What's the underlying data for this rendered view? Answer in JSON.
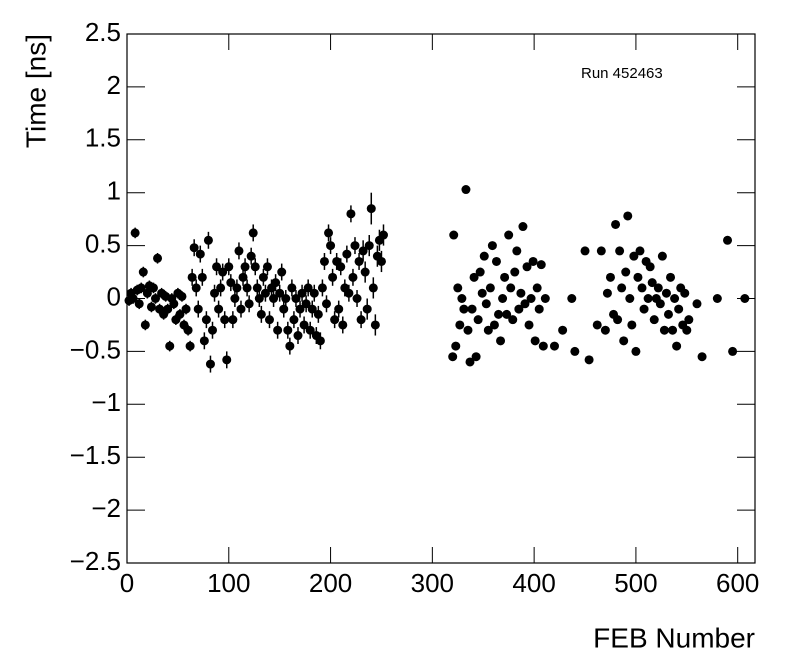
{
  "chart_data": {
    "type": "scatter",
    "x_label": "FEB Number",
    "y_label": "Time [ns]",
    "annotation": "Run 452463",
    "color": "#000000",
    "xlim": [
      0,
      617
    ],
    "xticks": [
      0,
      100,
      200,
      300,
      400,
      500,
      600
    ],
    "ylim": [
      -2.5,
      2.5
    ],
    "yticks": [
      {
        "value": -2.5,
        "label": "−2.5"
      },
      {
        "value": -2,
        "label": "−2"
      },
      {
        "value": -1.5,
        "label": "−1.5"
      },
      {
        "value": -1,
        "label": "−1"
      },
      {
        "value": -0.5,
        "label": "−0.5"
      },
      0,
      0.5,
      1,
      1.5,
      2,
      2.5
    ],
    "x": [
      2,
      4,
      6,
      8,
      10,
      12,
      14,
      16,
      18,
      20,
      22,
      24,
      26,
      28,
      30,
      32,
      34,
      36,
      38,
      40,
      42,
      44,
      46,
      48,
      50,
      52,
      54,
      56,
      58,
      60,
      62,
      64,
      66,
      68,
      70,
      72,
      74,
      76,
      78,
      80,
      82,
      84,
      86,
      88,
      90,
      92,
      94,
      96,
      98,
      100,
      102,
      104,
      106,
      108,
      110,
      112,
      114,
      116,
      118,
      120,
      122,
      124,
      126,
      128,
      130,
      132,
      134,
      136,
      138,
      140,
      142,
      144,
      146,
      148,
      150,
      152,
      154,
      156,
      158,
      160,
      162,
      164,
      166,
      168,
      170,
      172,
      174,
      176,
      178,
      180,
      182,
      184,
      186,
      188,
      190,
      192,
      194,
      196,
      198,
      200,
      202,
      204,
      206,
      208,
      210,
      212,
      214,
      216,
      218,
      220,
      222,
      224,
      226,
      228,
      230,
      232,
      234,
      236,
      238,
      240,
      242,
      244,
      246,
      248,
      250,
      252,
      320,
      321,
      323,
      325,
      327,
      329,
      331,
      333,
      335,
      337,
      339,
      341,
      343,
      345,
      347,
      349,
      351,
      353,
      355,
      357,
      359,
      361,
      363,
      365,
      367,
      369,
      371,
      373,
      375,
      377,
      379,
      381,
      383,
      385,
      387,
      389,
      391,
      393,
      395,
      397,
      399,
      401,
      403,
      405,
      407,
      409,
      411,
      420,
      428,
      437,
      440,
      450,
      454,
      462,
      466,
      470,
      472,
      475,
      478,
      480,
      482,
      484,
      486,
      488,
      490,
      492,
      494,
      496,
      498,
      500,
      502,
      504,
      506,
      508,
      510,
      512,
      514,
      516,
      518,
      520,
      522,
      524,
      526,
      528,
      530,
      532,
      534,
      536,
      538,
      540,
      542,
      544,
      546,
      548,
      550,
      552,
      560,
      565,
      580,
      590,
      595,
      607
    ],
    "values": [
      -0.02,
      0.05,
      0,
      0.62,
      0.08,
      -0.05,
      0.1,
      0.25,
      -0.25,
      0.05,
      0.12,
      -0.08,
      0.1,
      0,
      0.38,
      -0.1,
      0.05,
      -0.15,
      0.02,
      -0.1,
      -0.45,
      0,
      -0.05,
      -0.2,
      0.05,
      -0.15,
      0.02,
      -0.25,
      -0.1,
      -0.3,
      -0.45,
      0.2,
      0.48,
      0.1,
      -0.1,
      0.42,
      0.2,
      -0.4,
      -0.2,
      0.55,
      -0.62,
      -0.3,
      0.05,
      0.3,
      -0.1,
      0.1,
      0.25,
      -0.2,
      -0.58,
      0.3,
      0.15,
      -0.2,
      0,
      0.1,
      0.45,
      -0.1,
      0.2,
      0.3,
      0.1,
      -0.05,
      0.4,
      0.62,
      0.3,
      0.1,
      0,
      -0.15,
      0.2,
      0.05,
      0.3,
      -0.2,
      0.1,
      0,
      0.15,
      -0.3,
      0.05,
      0.25,
      -0.1,
      0,
      -0.3,
      -0.45,
      0.1,
      -0.2,
      0,
      -0.35,
      -0.1,
      0.05,
      -0.25,
      -0.05,
      0.1,
      -0.3,
      -0.1,
      0.05,
      -0.35,
      -0.15,
      -0.4,
      0.1,
      0.35,
      -0.05,
      0.62,
      0.5,
      0.2,
      -0.2,
      0.35,
      -0.1,
      0.3,
      -0.25,
      0.1,
      0.42,
      0.05,
      0.8,
      0.2,
      0.5,
      0,
      0.35,
      -0.2,
      0.45,
      0.25,
      -0.1,
      0.5,
      0.85,
      0.1,
      -0.25,
      0.4,
      0.55,
      0.35,
      0.6,
      -0.55,
      0.6,
      -0.45,
      0.1,
      -0.25,
      0,
      -0.1,
      1.03,
      -0.3,
      -0.6,
      -0.1,
      0.2,
      -0.55,
      -0.2,
      0.25,
      0.05,
      0.4,
      -0.05,
      -0.3,
      0.1,
      0.5,
      -0.25,
      0.35,
      -0.15,
      -0.4,
      0,
      0.2,
      -0.15,
      0.6,
      0.1,
      -0.2,
      0.25,
      0.45,
      -0.1,
      0.05,
      0.68,
      -0.05,
      0.3,
      -0.25,
      0,
      0.35,
      -0.4,
      0.1,
      -0.1,
      0.32,
      -0.45,
      0,
      -0.45,
      -0.3,
      0,
      -0.5,
      0.45,
      -0.58,
      -0.25,
      0.45,
      -0.3,
      0.05,
      0.2,
      -0.15,
      0.7,
      -0.2,
      0.45,
      0.1,
      -0.4,
      0.25,
      0.78,
      0,
      -0.25,
      0.4,
      -0.5,
      0.2,
      0.45,
      0.1,
      -0.1,
      0.35,
      0,
      0.3,
      0.15,
      -0.2,
      0,
      0.1,
      -0.05,
      0.4,
      -0.3,
      0.05,
      -0.15,
      0.2,
      -0.3,
      0,
      -0.45,
      -0.1,
      0.1,
      -0.25,
      0.05,
      -0.3,
      -0.2,
      -0.05,
      -0.55,
      0,
      0.55,
      -0.5,
      0
    ],
    "errors": [
      0.05,
      0.05,
      0.05,
      0.05,
      0.05,
      0.05,
      0.05,
      0.05,
      0.05,
      0.05,
      0.05,
      0.05,
      0.05,
      0.05,
      0.05,
      0.05,
      0.05,
      0.05,
      0.05,
      0.05,
      0.05,
      0.05,
      0.05,
      0.05,
      0.05,
      0.05,
      0.05,
      0.05,
      0.05,
      0.05,
      0.05,
      0.08,
      0.08,
      0.08,
      0.08,
      0.08,
      0.08,
      0.08,
      0.08,
      0.08,
      0.08,
      0.08,
      0.08,
      0.08,
      0.08,
      0.08,
      0.08,
      0.08,
      0.08,
      0.08,
      0.08,
      0.08,
      0.08,
      0.08,
      0.08,
      0.08,
      0.08,
      0.08,
      0.08,
      0.08,
      0.08,
      0.08,
      0.08,
      0.08,
      0.08,
      0.08,
      0.08,
      0.08,
      0.08,
      0.08,
      0.08,
      0.08,
      0.08,
      0.08,
      0.08,
      0.08,
      0.08,
      0.08,
      0.08,
      0.08,
      0.08,
      0.08,
      0.08,
      0.08,
      0.08,
      0.08,
      0.08,
      0.08,
      0.08,
      0.08,
      0.08,
      0.08,
      0.08,
      0.08,
      0.08,
      0.08,
      0.08,
      0.08,
      0.08,
      0.08,
      0.08,
      0.08,
      0.08,
      0.08,
      0.08,
      0.08,
      0.08,
      0.08,
      0.08,
      0.08,
      0.08,
      0.08,
      0.08,
      0.08,
      0.08,
      0.1,
      0.1,
      0.1,
      0.1,
      0.15,
      0.1,
      0.1,
      0.1,
      0.1,
      0.1,
      0.1,
      0.03,
      0.03,
      0.03,
      0.03,
      0.03,
      0.03,
      0.03,
      0.03,
      0.03,
      0.03,
      0.03,
      0.03,
      0.03,
      0.03,
      0.03,
      0.03,
      0.03,
      0.03,
      0.03,
      0.03,
      0.03,
      0.03,
      0.03,
      0.03,
      0.03,
      0.03,
      0.03,
      0.03,
      0.03,
      0.03,
      0.03,
      0.03,
      0.03,
      0.03,
      0.03,
      0.03,
      0.03,
      0.03,
      0.03,
      0.03,
      0.03,
      0.03,
      0.03,
      0.03,
      0.03,
      0.03,
      0.03,
      0.03,
      0.03,
      0.03,
      0.03,
      0.03,
      0.03,
      0.03,
      0.03,
      0.03,
      0.03,
      0.03,
      0.03,
      0.03,
      0.03,
      0.03,
      0.03,
      0.03,
      0.03,
      0.03,
      0.03,
      0.03,
      0.03,
      0.03,
      0.03,
      0.03,
      0.03,
      0.03,
      0.03,
      0.03,
      0.03,
      0.03,
      0.03,
      0.03,
      0.03,
      0.03,
      0.03,
      0.03,
      0.03,
      0.03,
      0.03,
      0.03,
      0.03,
      0.03,
      0.03,
      0.03,
      0.03,
      0.03,
      0.03,
      0.03,
      0.03,
      0.03,
      0.03,
      0.03,
      0.03,
      0.03
    ]
  }
}
